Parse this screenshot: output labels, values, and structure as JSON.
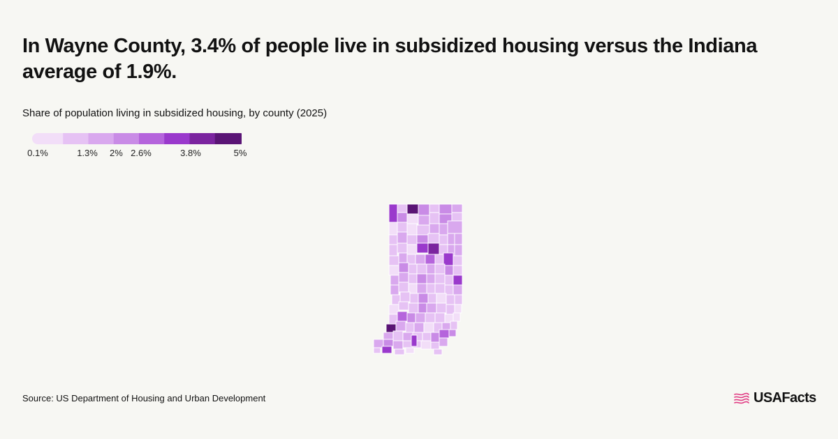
{
  "headline": "In Wayne County, 3.4% of people live in subsidized housing versus the Indiana average of 1.9%.",
  "subtitle": "Share of population living in subsidized housing, by county (2025)",
  "legend": {
    "colors": [
      "#f2def8",
      "#e6c2f4",
      "#d9a8ee",
      "#c98be6",
      "#b564dc",
      "#9a39cc",
      "#7b249f",
      "#5a1475"
    ],
    "ticks": [
      {
        "label": "0.1%",
        "value": 0.1
      },
      {
        "label": "1.3%",
        "value": 1.3
      },
      {
        "label": "2%",
        "value": 2.0
      },
      {
        "label": "2.6%",
        "value": 2.6
      },
      {
        "label": "3.8%",
        "value": 3.8
      },
      {
        "label": "5%",
        "value": 5.0
      }
    ],
    "min": 0.1,
    "max": 5.0
  },
  "source": "Source: US Department of Housing and Urban Development",
  "brand": {
    "name": "USAFacts",
    "accent": "#e0357f",
    "icon": "usa-flag-icon"
  },
  "map_colors": {
    "border": "#ffffff"
  }
}
